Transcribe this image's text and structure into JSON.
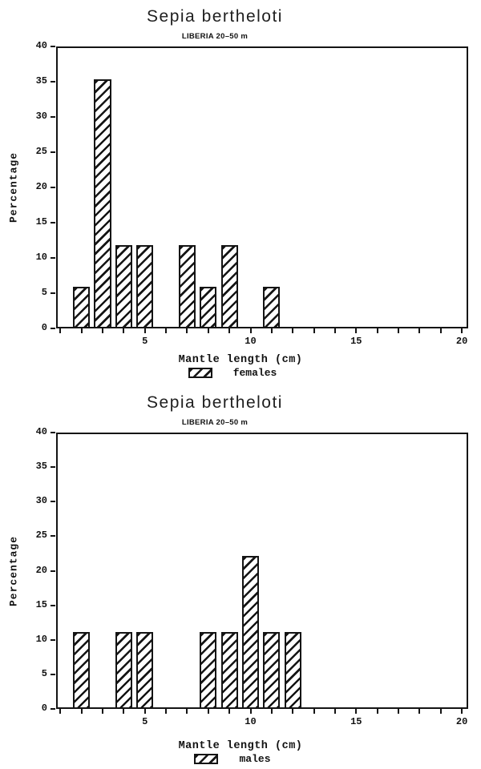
{
  "colors": {
    "ink": "#141414",
    "paper": "#ffffff"
  },
  "chart_data": [
    {
      "type": "bar",
      "title": "Sepia bertheloti",
      "subtitle": "LIBERIA 20–50 m",
      "xlabel": "Mantle length (cm)",
      "ylabel": "Percentage",
      "legend_label": "females",
      "series_name": "females",
      "x": [
        2,
        3,
        4,
        5,
        7,
        8,
        9,
        11
      ],
      "values": [
        5.9,
        35.3,
        11.8,
        11.8,
        11.8,
        5.9,
        11.8,
        5.9
      ],
      "bar_width": 0.8,
      "bar_style": "diagonal-hatch",
      "xlim": [
        0.8,
        20.3
      ],
      "ylim": [
        0,
        40
      ],
      "yticks": [
        0,
        5,
        10,
        15,
        20,
        25,
        30,
        35,
        40
      ],
      "xticks_start": 1,
      "xticks_end": 20,
      "xticks_every": 1,
      "xticks_labeled": [
        5,
        10,
        15,
        20
      ],
      "grid": false,
      "legend_position": "bottom-center"
    },
    {
      "type": "bar",
      "title": "Sepia bertheloti",
      "subtitle": "LIBERIA 20–50 m",
      "xlabel": "Mantle length (cm)",
      "ylabel": "Percentage",
      "legend_label": "males",
      "series_name": "males",
      "x": [
        2,
        4,
        5,
        8,
        9,
        10,
        11,
        12
      ],
      "values": [
        11.1,
        11.1,
        11.1,
        11.1,
        11.1,
        22.2,
        11.1,
        11.1
      ],
      "bar_width": 0.8,
      "bar_style": "diagonal-hatch",
      "xlim": [
        0.8,
        20.3
      ],
      "ylim": [
        0,
        40
      ],
      "yticks": [
        0,
        5,
        10,
        15,
        20,
        25,
        30,
        35,
        40
      ],
      "xticks_start": 1,
      "xticks_end": 20,
      "xticks_every": 1,
      "xticks_labeled": [
        5,
        10,
        15,
        20
      ],
      "grid": false,
      "legend_position": "bottom-center"
    }
  ]
}
